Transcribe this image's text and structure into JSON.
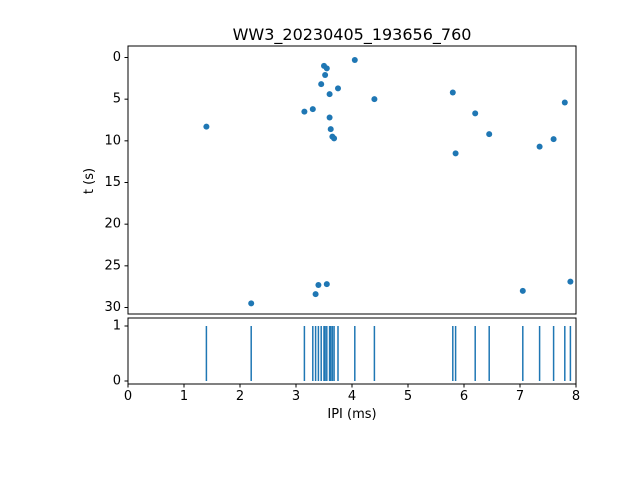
{
  "figure": {
    "title": "WW3_20230405_193656_760",
    "background_color": "#ffffff",
    "accent_color": "#1f77b4"
  },
  "chart_data": [
    {
      "type": "scatter",
      "title": "WW3_20230405_193656_760",
      "xlabel": "IPI (ms)",
      "ylabel": "t (s)",
      "xlim": [
        0,
        8
      ],
      "ylim": [
        31.5,
        -1.5
      ],
      "y_axis_inverted": true,
      "yticks": [
        0,
        5,
        10,
        15,
        20,
        25,
        30
      ],
      "marker_color": "#1f77b4",
      "marker_style": "filled-circle",
      "points": [
        [
          1.4,
          8.3
        ],
        [
          2.2,
          29.5
        ],
        [
          3.15,
          6.5
        ],
        [
          3.3,
          6.2
        ],
        [
          3.35,
          28.4
        ],
        [
          3.4,
          27.3
        ],
        [
          3.45,
          3.2
        ],
        [
          3.5,
          1.0
        ],
        [
          3.52,
          2.1
        ],
        [
          3.55,
          1.3
        ],
        [
          3.55,
          27.2
        ],
        [
          3.6,
          4.4
        ],
        [
          3.6,
          7.2
        ],
        [
          3.62,
          8.6
        ],
        [
          3.65,
          9.5
        ],
        [
          3.68,
          9.7
        ],
        [
          3.75,
          3.7
        ],
        [
          4.05,
          0.3
        ],
        [
          4.4,
          5.0
        ],
        [
          5.8,
          4.2
        ],
        [
          5.85,
          11.5
        ],
        [
          6.2,
          6.7
        ],
        [
          6.45,
          9.2
        ],
        [
          7.05,
          28.0
        ],
        [
          7.35,
          10.7
        ],
        [
          7.6,
          9.8
        ],
        [
          7.8,
          5.4
        ],
        [
          7.9,
          26.9
        ]
      ]
    },
    {
      "type": "event-raster",
      "xlabel": "IPI (ms)",
      "xlim": [
        0,
        8
      ],
      "ylim": [
        -0.05,
        1.05
      ],
      "xticks": [
        0,
        1,
        2,
        3,
        4,
        5,
        6,
        7,
        8
      ],
      "yticks": [
        0,
        1
      ],
      "line_color": "#1f77b4",
      "event_span": [
        0,
        1
      ],
      "events_x": [
        1.4,
        2.2,
        3.15,
        3.3,
        3.35,
        3.4,
        3.45,
        3.5,
        3.52,
        3.55,
        3.6,
        3.62,
        3.65,
        3.68,
        3.75,
        4.05,
        4.4,
        5.8,
        5.85,
        6.2,
        6.45,
        7.05,
        7.35,
        7.6,
        7.8,
        7.9
      ]
    }
  ]
}
